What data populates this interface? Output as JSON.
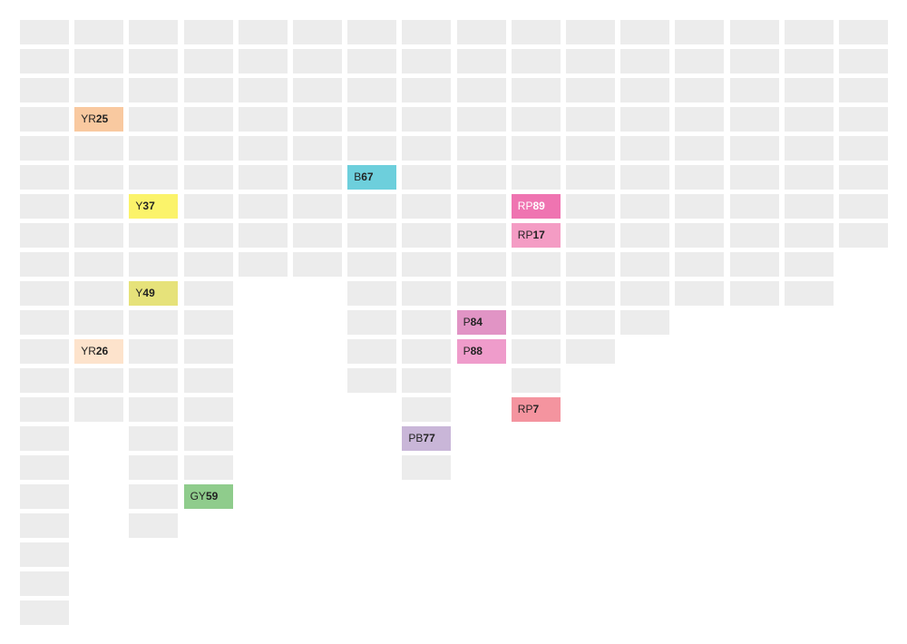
{
  "columns": [
    {
      "cells": 21,
      "swatches": []
    },
    {
      "cells": 14,
      "swatches": [
        {
          "row": 3,
          "prefix": "YR",
          "number": "25",
          "color": "#f9c9a0"
        },
        {
          "row": 11,
          "prefix": "YR",
          "number": "26",
          "color": "#fde3cc"
        }
      ]
    },
    {
      "cells": 18,
      "swatches": [
        {
          "row": 6,
          "prefix": "Y",
          "number": "37",
          "color": "#fbf36a"
        },
        {
          "row": 9,
          "prefix": "Y",
          "number": "49",
          "color": "#e6e27a"
        }
      ]
    },
    {
      "cells": 17,
      "swatches": [
        {
          "row": 16,
          "prefix": "GY",
          "number": "59",
          "color": "#8fcc8c"
        }
      ]
    },
    {
      "cells": 9,
      "swatches": []
    },
    {
      "cells": 9,
      "swatches": []
    },
    {
      "cells": 13,
      "swatches": [
        {
          "row": 5,
          "prefix": "B",
          "number": "67",
          "color": "#6dcfdc"
        }
      ]
    },
    {
      "cells": 16,
      "swatches": [
        {
          "row": 14,
          "prefix": "PB",
          "number": "77",
          "color": "#c9b6d8"
        }
      ]
    },
    {
      "cells": 12,
      "swatches": [
        {
          "row": 10,
          "prefix": "P",
          "number": "84",
          "color": "#e194c5"
        },
        {
          "row": 11,
          "prefix": "P",
          "number": "88",
          "color": "#ef9ccb"
        }
      ]
    },
    {
      "cells": 14,
      "swatches": [
        {
          "row": 6,
          "prefix": "RP",
          "number": "89",
          "color": "#ef74b1",
          "text_color": "#ffffff"
        },
        {
          "row": 7,
          "prefix": "RP",
          "number": "17",
          "color": "#f49cc4"
        },
        {
          "row": 13,
          "prefix": "RP",
          "number": "7",
          "color": "#f4949f"
        }
      ]
    },
    {
      "cells": 12,
      "swatches": []
    },
    {
      "cells": 11,
      "swatches": []
    },
    {
      "cells": 10,
      "swatches": []
    },
    {
      "cells": 10,
      "swatches": []
    },
    {
      "cells": 10,
      "swatches": []
    },
    {
      "cells": 8,
      "swatches": []
    }
  ]
}
